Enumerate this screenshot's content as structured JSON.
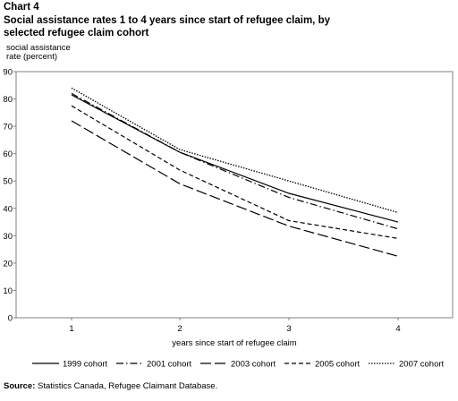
{
  "chart_label": "Chart 4",
  "title_lines": [
    "Social assistance rates 1 to 4 years since start of refugee claim, by",
    "selected refugee claim cohort"
  ],
  "source": {
    "label": "Source:",
    "text": "Statistics Canada, Refugee Claimant Database."
  },
  "chart_data": {
    "type": "line",
    "x": [
      1,
      2,
      3,
      4
    ],
    "xticks": [
      "1",
      "2",
      "3",
      "4"
    ],
    "xlabel": "years since start of refugee claim",
    "ylabel_lines": [
      "social assistance",
      "rate (percent)"
    ],
    "ylim": [
      0,
      90
    ],
    "yticks": [
      0,
      10,
      20,
      30,
      40,
      50,
      60,
      70,
      80,
      90
    ],
    "grid": false,
    "legend_position": "bottom",
    "series": [
      {
        "name": "1999 cohort",
        "values": [
          81.5,
          60.5,
          45.5,
          35.0
        ],
        "style": "solid"
      },
      {
        "name": "2001 cohort",
        "values": [
          82.0,
          60.5,
          44.0,
          32.5
        ],
        "style": "dashdot"
      },
      {
        "name": "2003 cohort",
        "values": [
          72.0,
          49.0,
          33.5,
          22.5
        ],
        "style": "longdash"
      },
      {
        "name": "2005 cohort",
        "values": [
          77.5,
          54.0,
          35.5,
          29.0
        ],
        "style": "dash"
      },
      {
        "name": "2007 cohort",
        "values": [
          84.0,
          61.5,
          50.0,
          38.5
        ],
        "style": "dot"
      }
    ]
  }
}
